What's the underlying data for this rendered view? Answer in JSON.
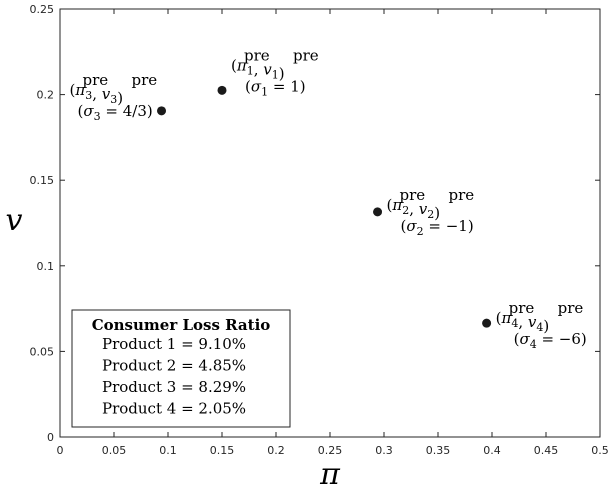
{
  "chart_data": {
    "type": "scatter",
    "xlabel": "π",
    "ylabel": "v",
    "xlim": [
      0,
      0.5
    ],
    "ylim": [
      0,
      0.25
    ],
    "x_ticks": [
      "0",
      "0.05",
      "0.1",
      "0.15",
      "0.2",
      "0.25",
      "0.3",
      "0.35",
      "0.4",
      "0.45",
      "0.5"
    ],
    "y_ticks": [
      "0",
      "0.05",
      "0.1",
      "0.15",
      "0.2",
      "0.25"
    ],
    "grid": false,
    "points": [
      {
        "id": "1",
        "x": 0.15,
        "y": 0.2025,
        "sigma": "1"
      },
      {
        "id": "2",
        "x": 0.294,
        "y": 0.1315,
        "sigma": "−1"
      },
      {
        "id": "3",
        "x": 0.094,
        "y": 0.1905,
        "sigma": "4/3"
      },
      {
        "id": "4",
        "x": 0.395,
        "y": 0.0665,
        "sigma": "−6"
      }
    ],
    "point_label_base_pi": "π",
    "point_label_base_v": "v",
    "point_label_sup": "pre",
    "sigma_symbol": "σ",
    "loss_box": {
      "title": "Consumer Loss Ratio",
      "rows": [
        {
          "label": "Product 1",
          "value": "9.10%"
        },
        {
          "label": "Product 2",
          "value": "4.85%"
        },
        {
          "label": "Product 3",
          "value": "8.29%"
        },
        {
          "label": "Product 4",
          "value": "2.05%"
        }
      ]
    }
  }
}
